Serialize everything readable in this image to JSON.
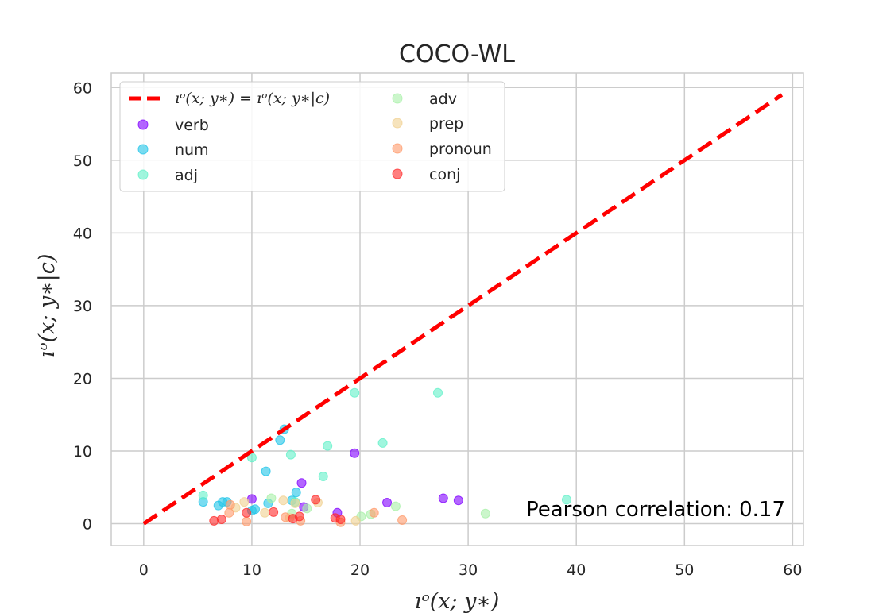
{
  "chart_data": {
    "type": "scatter",
    "title": "COCO-WL",
    "xlabel": "ıᵒ(x; y∗)",
    "ylabel": "ıᵒ(x; y∗|c)",
    "xlim": [
      -3,
      61
    ],
    "ylim": [
      -3,
      62
    ],
    "xticks": [
      0,
      10,
      20,
      30,
      40,
      50,
      60
    ],
    "yticks": [
      0,
      10,
      20,
      30,
      40,
      50,
      60
    ],
    "grid": true,
    "legend_placement": "top-left",
    "reference_line": {
      "label": "ıᵒ(x; y∗) = ıᵒ(x; y∗|c)",
      "x": [
        0,
        59
      ],
      "y": [
        0,
        59
      ],
      "color": "#ff0000",
      "style": "dashed"
    },
    "annotation": "Pearson correlation: 0.17",
    "series": [
      {
        "name": "verb",
        "color": "#8000ff",
        "x": [
          14.6,
          19.5,
          27.7,
          29.1,
          22.5,
          10.0,
          14.8,
          17.9
        ],
        "y": [
          5.6,
          9.7,
          3.5,
          3.2,
          2.9,
          3.4,
          2.3,
          1.5
        ]
      },
      {
        "name": "num",
        "color": "#20c4e8",
        "x": [
          13.0,
          12.6,
          11.3,
          5.5,
          6.9,
          7.3,
          7.7,
          10.3,
          11.5,
          13.7,
          14.1,
          10.0
        ],
        "y": [
          13.0,
          11.5,
          7.2,
          3.0,
          2.5,
          3.0,
          3.0,
          2.0,
          2.8,
          3.2,
          4.3,
          1.8
        ]
      },
      {
        "name": "adj",
        "color": "#60f0c8",
        "x": [
          19.5,
          27.2,
          22.1,
          17.0,
          10.0,
          13.6,
          16.6,
          39.1,
          5.5,
          14.0
        ],
        "y": [
          18.0,
          18.0,
          11.1,
          10.7,
          9.1,
          9.5,
          6.5,
          3.3,
          3.9,
          3.0
        ]
      },
      {
        "name": "adv",
        "color": "#a8f0a8",
        "x": [
          23.3,
          20.1,
          31.6,
          11.8,
          13.7,
          15.1,
          21.0
        ],
        "y": [
          2.4,
          1.0,
          1.4,
          3.5,
          1.4,
          2.1,
          1.3
        ]
      },
      {
        "name": "prep",
        "color": "#f0d090",
        "x": [
          9.3,
          12.9,
          14.0,
          16.1,
          11.2,
          13.5,
          8.5,
          19.6
        ],
        "y": [
          3.0,
          3.2,
          2.8,
          2.9,
          1.5,
          0.8,
          2.2,
          0.4
        ]
      },
      {
        "name": "pronoun",
        "color": "#ff9a6a",
        "x": [
          8.0,
          7.9,
          9.5,
          21.3,
          23.9,
          14.5,
          18.2,
          13.1
        ],
        "y": [
          2.6,
          1.5,
          0.3,
          1.5,
          0.5,
          0.4,
          0.2,
          0.9
        ]
      },
      {
        "name": "conj",
        "color": "#ff2a2a",
        "x": [
          6.5,
          7.2,
          9.5,
          12.0,
          13.8,
          14.4,
          15.9,
          17.7,
          18.2
        ],
        "y": [
          0.4,
          0.6,
          1.5,
          1.6,
          0.7,
          1.0,
          3.3,
          0.8,
          0.6
        ]
      }
    ]
  }
}
